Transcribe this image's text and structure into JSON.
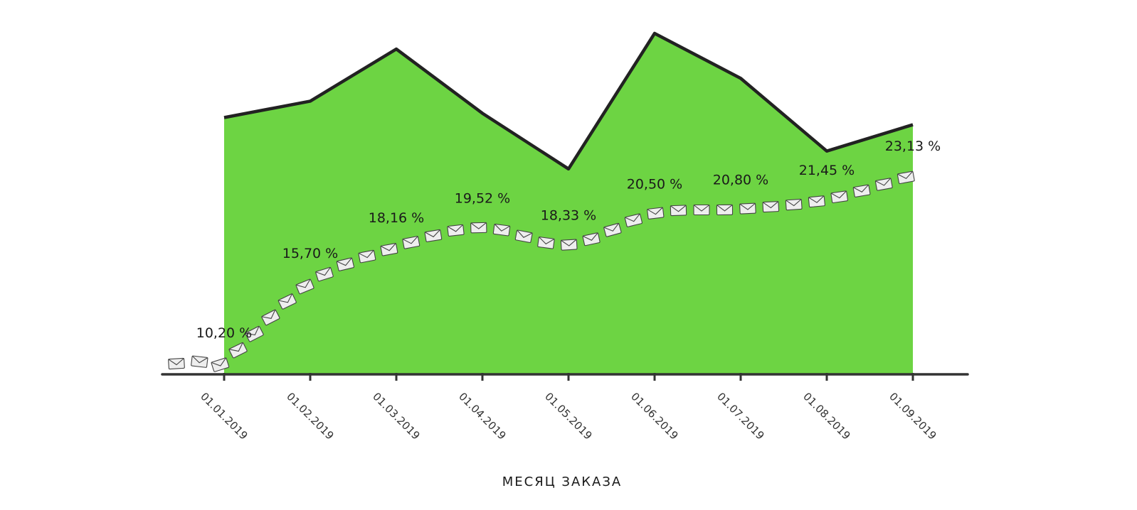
{
  "chart_data": {
    "type": "area",
    "title": "",
    "xlabel": "МЕСЯЦ ЗАКАЗА",
    "ylabel": "",
    "categories": [
      "01.01.2019",
      "01.02.2019",
      "01.03.2019",
      "01.04.2019",
      "01.05.2019",
      "01.06.2019",
      "01.07.2019",
      "01.08.2019",
      "01.09.2019"
    ],
    "series": [
      {
        "type": "area",
        "values": [
          360,
          383,
          456,
          366,
          288,
          478,
          415,
          313,
          350
        ]
      },
      {
        "type": "line",
        "marker": "envelope-icon",
        "values": [
          10.2,
          15.7,
          18.16,
          19.52,
          18.33,
          20.5,
          20.8,
          21.45,
          23.13
        ],
        "labels": [
          "10,20 %",
          "15,70 %",
          "18,16 %",
          "19,52 %",
          "18,33 %",
          "20,50 %",
          "20,80 %",
          "21,45 %",
          "23,13 %"
        ]
      }
    ],
    "colors": {
      "area_fill": "#6dd443",
      "area_stroke": "#222222",
      "axis": "#333333",
      "line_marker": "#eeeeee"
    },
    "grid": false,
    "legend": "none"
  }
}
